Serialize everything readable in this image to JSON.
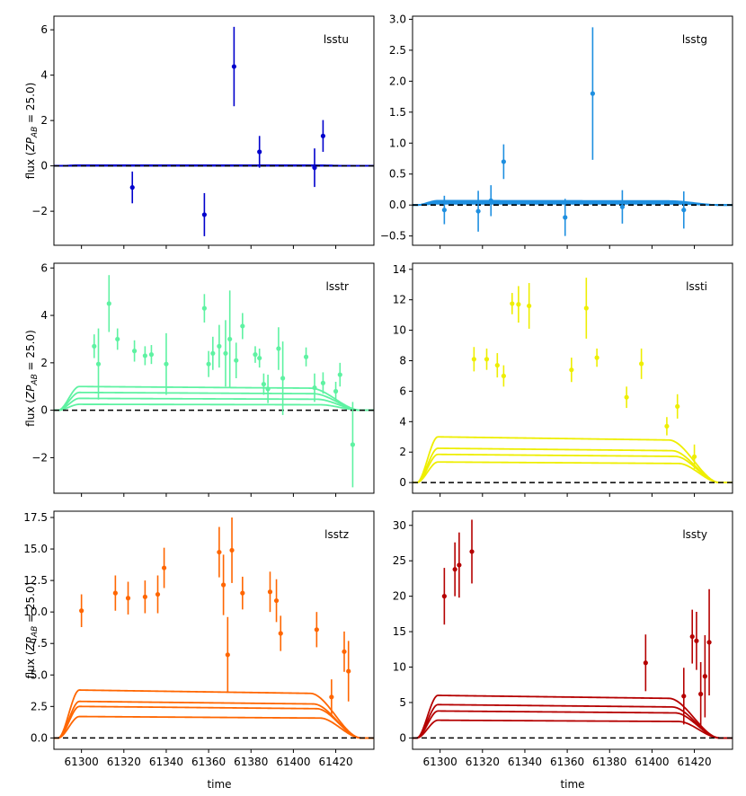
{
  "figure": {
    "xlabel": "time",
    "ylabel_prefix": "flux (",
    "ylabel_zp": "ZP",
    "ylabel_sub": "AB",
    "ylabel_suffix": " = 25.0)"
  },
  "chart_data": [
    {
      "type": "scatter",
      "title": "lsstu",
      "color": "#0000cc",
      "xlim": [
        61287,
        61438
      ],
      "ylim": [
        -3.5,
        6.6
      ],
      "yticks": [
        -2,
        0,
        2,
        4,
        6
      ],
      "ytick_labels": [
        "−2",
        "0",
        "2",
        "4",
        "6"
      ],
      "xticks": [
        61300,
        61320,
        61340,
        61360,
        61380,
        61400,
        61420
      ],
      "xtick_labels": [],
      "points": [
        {
          "x": 61324,
          "y": -0.95,
          "err": 0.7
        },
        {
          "x": 61358,
          "y": -2.15,
          "err": 0.95
        },
        {
          "x": 61372,
          "y": 4.38,
          "err": 1.75
        },
        {
          "x": 61384,
          "y": 0.62,
          "err": 0.7
        },
        {
          "x": 61410,
          "y": -0.08,
          "err": 0.85
        },
        {
          "x": 61414,
          "y": 1.32,
          "err": 0.7
        }
      ],
      "model_levels": [
        0.03,
        0.02,
        0.01,
        0.005
      ]
    },
    {
      "type": "scatter",
      "title": "lsstg",
      "color": "#1e8fe0",
      "xlim": [
        61287,
        61438
      ],
      "ylim": [
        -0.65,
        3.05
      ],
      "yticks": [
        -0.5,
        0,
        0.5,
        1,
        1.5,
        2,
        2.5,
        3
      ],
      "ytick_labels": [
        "−0.5",
        "0.0",
        "0.5",
        "1.0",
        "1.5",
        "2.0",
        "2.5",
        "3.0"
      ],
      "xticks": [
        61300,
        61320,
        61340,
        61360,
        61380,
        61400,
        61420
      ],
      "xtick_labels": [],
      "points": [
        {
          "x": 61302,
          "y": -0.08,
          "err": 0.23
        },
        {
          "x": 61318,
          "y": -0.1,
          "err": 0.33
        },
        {
          "x": 61324,
          "y": 0.07,
          "err": 0.25
        },
        {
          "x": 61330,
          "y": 0.7,
          "err": 0.28
        },
        {
          "x": 61359,
          "y": -0.2,
          "err": 0.3
        },
        {
          "x": 61372,
          "y": 1.8,
          "err": 1.07
        },
        {
          "x": 61386,
          "y": -0.03,
          "err": 0.27
        },
        {
          "x": 61415,
          "y": -0.08,
          "err": 0.3
        }
      ],
      "model_levels": [
        0.07,
        0.05,
        0.035,
        0.02
      ]
    },
    {
      "type": "scatter",
      "title": "lsstr",
      "color": "#5ef2a2",
      "xlim": [
        61287,
        61438
      ],
      "ylim": [
        -3.5,
        6.2
      ],
      "yticks": [
        -2,
        0,
        2,
        4,
        6
      ],
      "ytick_labels": [
        "−2",
        "0",
        "2",
        "4",
        "6"
      ],
      "xticks": [
        61300,
        61320,
        61340,
        61360,
        61380,
        61400,
        61420
      ],
      "xtick_labels": [],
      "points": [
        {
          "x": 61306,
          "y": 2.7,
          "err": 0.5
        },
        {
          "x": 61308,
          "y": 1.95,
          "err": 1.5
        },
        {
          "x": 61313,
          "y": 4.5,
          "err": 1.2
        },
        {
          "x": 61317,
          "y": 3.0,
          "err": 0.45
        },
        {
          "x": 61325,
          "y": 2.5,
          "err": 0.45
        },
        {
          "x": 61330,
          "y": 2.3,
          "err": 0.4
        },
        {
          "x": 61333,
          "y": 2.35,
          "err": 0.4
        },
        {
          "x": 61340,
          "y": 1.95,
          "err": 1.3
        },
        {
          "x": 61358,
          "y": 4.3,
          "err": 0.6
        },
        {
          "x": 61360,
          "y": 1.95,
          "err": 0.55
        },
        {
          "x": 61362,
          "y": 2.4,
          "err": 0.7
        },
        {
          "x": 61365,
          "y": 2.7,
          "err": 0.9
        },
        {
          "x": 61368,
          "y": 2.4,
          "err": 1.4
        },
        {
          "x": 61370,
          "y": 3.0,
          "err": 2.05
        },
        {
          "x": 61373,
          "y": 2.1,
          "err": 0.75
        },
        {
          "x": 61376,
          "y": 3.55,
          "err": 0.55
        },
        {
          "x": 61382,
          "y": 2.35,
          "err": 0.35
        },
        {
          "x": 61384,
          "y": 2.2,
          "err": 0.4
        },
        {
          "x": 61386,
          "y": 1.1,
          "err": 0.45
        },
        {
          "x": 61388,
          "y": 0.9,
          "err": 0.6
        },
        {
          "x": 61393,
          "y": 2.6,
          "err": 0.9
        },
        {
          "x": 61395,
          "y": 1.35,
          "err": 1.55
        },
        {
          "x": 61406,
          "y": 2.25,
          "err": 0.4
        },
        {
          "x": 61410,
          "y": 0.95,
          "err": 0.6
        },
        {
          "x": 61414,
          "y": 1.15,
          "err": 0.45
        },
        {
          "x": 61420,
          "y": 0.8,
          "err": 0.4
        },
        {
          "x": 61422,
          "y": 1.5,
          "err": 0.5
        },
        {
          "x": 61428,
          "y": -1.45,
          "err": 1.8
        }
      ],
      "model_levels": [
        1.0,
        0.75,
        0.5,
        0.25
      ]
    },
    {
      "type": "scatter",
      "title": "lssti",
      "color": "#eeee00",
      "xlim": [
        61287,
        61438
      ],
      "ylim": [
        -0.7,
        14.4
      ],
      "yticks": [
        0,
        2,
        4,
        6,
        8,
        10,
        12,
        14
      ],
      "ytick_labels": [
        "0",
        "2",
        "4",
        "6",
        "8",
        "10",
        "12",
        "14"
      ],
      "xticks": [
        61300,
        61320,
        61340,
        61360,
        61380,
        61400,
        61420
      ],
      "xtick_labels": [],
      "points": [
        {
          "x": 61316,
          "y": 8.1,
          "err": 0.8
        },
        {
          "x": 61322,
          "y": 8.1,
          "err": 0.7
        },
        {
          "x": 61327,
          "y": 7.7,
          "err": 0.8
        },
        {
          "x": 61330,
          "y": 7.0,
          "err": 0.7
        },
        {
          "x": 61334,
          "y": 11.75,
          "err": 0.7
        },
        {
          "x": 61337,
          "y": 11.7,
          "err": 1.2
        },
        {
          "x": 61342,
          "y": 11.6,
          "err": 1.5
        },
        {
          "x": 61362,
          "y": 7.4,
          "err": 0.8
        },
        {
          "x": 61369,
          "y": 11.45,
          "err": 2.0
        },
        {
          "x": 61374,
          "y": 8.2,
          "err": 0.6
        },
        {
          "x": 61388,
          "y": 5.6,
          "err": 0.7
        },
        {
          "x": 61395,
          "y": 7.8,
          "err": 1.0
        },
        {
          "x": 61407,
          "y": 3.7,
          "err": 0.6
        },
        {
          "x": 61412,
          "y": 5.0,
          "err": 0.8
        },
        {
          "x": 61420,
          "y": 1.7,
          "err": 0.8
        }
      ],
      "model_levels": [
        3.0,
        2.25,
        1.85,
        1.35
      ]
    },
    {
      "type": "scatter",
      "title": "lsstz",
      "color": "#ff6600",
      "xlim": [
        61287,
        61438
      ],
      "ylim": [
        -0.9,
        18.0
      ],
      "yticks": [
        0,
        2.5,
        5,
        7.5,
        10,
        12.5,
        15,
        17.5
      ],
      "ytick_labels": [
        "0.0",
        "2.5",
        "5.0",
        "7.5",
        "10.0",
        "12.5",
        "15.0",
        "17.5"
      ],
      "xticks": [
        61300,
        61320,
        61340,
        61360,
        61380,
        61400,
        61420
      ],
      "xtick_labels": [
        "61300",
        "61320",
        "61340",
        "61360",
        "61380",
        "61400",
        "61420"
      ],
      "points": [
        {
          "x": 61300,
          "y": 10.1,
          "err": 1.3
        },
        {
          "x": 61316,
          "y": 11.5,
          "err": 1.4
        },
        {
          "x": 61322,
          "y": 11.1,
          "err": 1.3
        },
        {
          "x": 61330,
          "y": 11.2,
          "err": 1.3
        },
        {
          "x": 61336,
          "y": 11.4,
          "err": 1.5
        },
        {
          "x": 61339,
          "y": 13.5,
          "err": 1.6
        },
        {
          "x": 61365,
          "y": 14.75,
          "err": 2.0
        },
        {
          "x": 61367,
          "y": 12.15,
          "err": 2.4
        },
        {
          "x": 61369,
          "y": 6.6,
          "err": 3.0
        },
        {
          "x": 61371,
          "y": 14.9,
          "err": 2.6
        },
        {
          "x": 61376,
          "y": 11.5,
          "err": 1.3
        },
        {
          "x": 61389,
          "y": 11.6,
          "err": 1.6
        },
        {
          "x": 61392,
          "y": 10.9,
          "err": 1.7
        },
        {
          "x": 61394,
          "y": 8.3,
          "err": 1.4
        },
        {
          "x": 61411,
          "y": 8.6,
          "err": 1.4
        },
        {
          "x": 61418,
          "y": 3.25,
          "err": 1.4
        },
        {
          "x": 61424,
          "y": 6.85,
          "err": 1.6
        },
        {
          "x": 61426,
          "y": 5.3,
          "err": 2.4
        }
      ],
      "model_levels": [
        3.8,
        2.9,
        2.5,
        1.7
      ]
    },
    {
      "type": "scatter",
      "title": "lssty",
      "color": "#b50000",
      "xlim": [
        61287,
        61438
      ],
      "ylim": [
        -1.6,
        32.0
      ],
      "yticks": [
        0,
        5,
        10,
        15,
        20,
        25,
        30
      ],
      "ytick_labels": [
        "0",
        "5",
        "10",
        "15",
        "20",
        "25",
        "30"
      ],
      "xticks": [
        61300,
        61320,
        61340,
        61360,
        61380,
        61400,
        61420
      ],
      "xtick_labels": [
        "61300",
        "61320",
        "61340",
        "61360",
        "61380",
        "61400",
        "61420"
      ],
      "points": [
        {
          "x": 61302,
          "y": 20.0,
          "err": 4.0
        },
        {
          "x": 61307,
          "y": 23.8,
          "err": 3.8
        },
        {
          "x": 61309,
          "y": 24.4,
          "err": 4.6
        },
        {
          "x": 61315,
          "y": 26.3,
          "err": 4.5
        },
        {
          "x": 61397,
          "y": 10.6,
          "err": 4.0
        },
        {
          "x": 61415,
          "y": 5.9,
          "err": 4.0
        },
        {
          "x": 61419,
          "y": 14.3,
          "err": 3.8
        },
        {
          "x": 61421,
          "y": 13.7,
          "err": 4.1
        },
        {
          "x": 61423,
          "y": 6.2,
          "err": 4.5
        },
        {
          "x": 61425,
          "y": 8.7,
          "err": 5.8
        },
        {
          "x": 61427,
          "y": 13.5,
          "err": 7.5
        }
      ],
      "model_levels": [
        6.0,
        4.7,
        3.8,
        2.5
      ]
    }
  ]
}
